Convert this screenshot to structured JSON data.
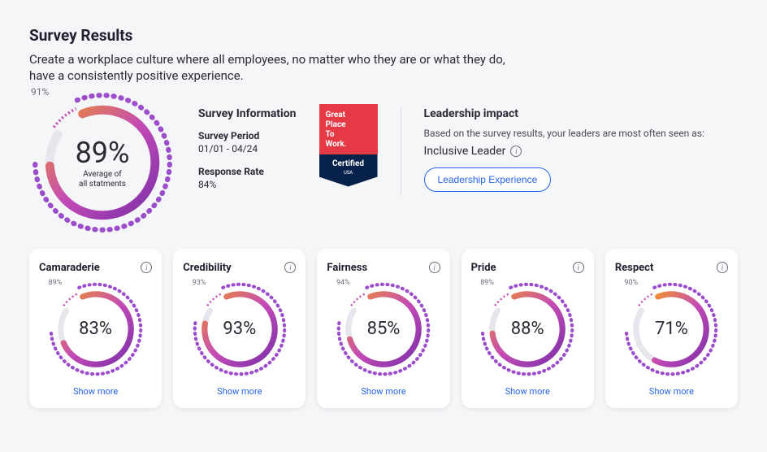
{
  "title": "Survey Results",
  "subtitle": "Create a workplace culture where all employees, no matter who they are or what they do, have a consistently positive experience.",
  "main_dial": {
    "outer_label": "91%",
    "center_pct": "89%",
    "center_sub1": "Average of",
    "center_sub2": "all statments",
    "arc_pct": 89,
    "dotted_pct": 91,
    "colors": {
      "start": "#ef8f2f",
      "mid": "#c44bb6",
      "end": "#7a2fa8",
      "dotted": "#9c4dcc",
      "track": "#e6e6ec"
    }
  },
  "survey_info": {
    "heading": "Survey Information",
    "period_label": "Survey Period",
    "period_value": "01/01 - 04/24",
    "rate_label": "Response Rate",
    "rate_value": "84%"
  },
  "badge": {
    "line1": "Great",
    "line2": "Place",
    "line3": "To",
    "line4": "Work.",
    "cert": "Certified",
    "country": "USA",
    "top_bg": "#e63946",
    "bot_bg": "#07224a"
  },
  "leadership": {
    "heading": "Leadership impact",
    "body": "Based on the survey results, your leaders are most often seen as:",
    "role": "Inclusive Leader",
    "button": "Leadership Experience"
  },
  "cards": [
    {
      "title": "Camaraderie",
      "outer_label": "89%",
      "center_pct": "83%",
      "arc_pct": 83,
      "dotted_pct": 89,
      "show_more": "Show more"
    },
    {
      "title": "Credibility",
      "outer_label": "93%",
      "center_pct": "93%",
      "arc_pct": 93,
      "dotted_pct": 93,
      "show_more": "Show more"
    },
    {
      "title": "Fairness",
      "outer_label": "94%",
      "center_pct": "85%",
      "arc_pct": 85,
      "dotted_pct": 94,
      "show_more": "Show more"
    },
    {
      "title": "Pride",
      "outer_label": "89%",
      "center_pct": "88%",
      "arc_pct": 88,
      "dotted_pct": 89,
      "show_more": "Show more"
    },
    {
      "title": "Respect",
      "outer_label": "90%",
      "center_pct": "71%",
      "arc_pct": 71,
      "dotted_pct": 90,
      "show_more": "Show more"
    }
  ],
  "small_dial_style": {
    "colors": {
      "start": "#ef8f2f",
      "mid": "#c44bb6",
      "end": "#7a2fa8",
      "dotted": "#9c4dcc",
      "track": "#e6e6ec"
    }
  }
}
